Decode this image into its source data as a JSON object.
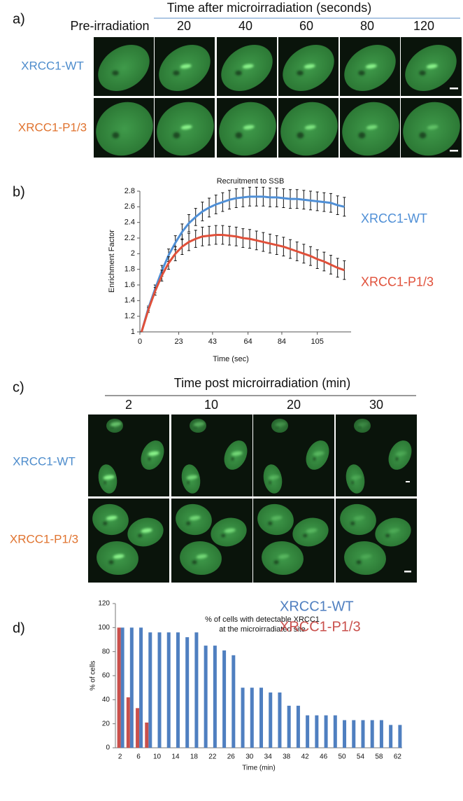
{
  "panel_a": {
    "label": "a)",
    "header": "Time after microirradiation (seconds)",
    "columns": [
      "Pre-irradiation",
      "20",
      "40",
      "60",
      "80",
      "120"
    ],
    "rows": [
      "XRCC1-WT",
      "XRCC1-P1/3"
    ]
  },
  "chart_data": [
    {
      "type": "line",
      "label": "b)",
      "title": "Recruitment to SSB",
      "xlabel": "Time (sec)",
      "ylabel": "Enrichment Factor",
      "x": [
        1,
        5,
        9,
        13,
        17,
        21,
        25,
        29,
        33,
        37,
        41,
        45,
        49,
        53,
        57,
        61,
        65,
        69,
        73,
        77,
        81,
        85,
        89,
        93,
        97,
        101,
        105,
        109,
        113,
        117,
        121
      ],
      "xlim": [
        0,
        125
      ],
      "xticks": [
        0,
        23,
        43,
        64,
        84,
        105
      ],
      "ylim": [
        1,
        2.8
      ],
      "yticks": [
        1,
        1.2,
        1.4,
        1.6,
        1.8,
        2,
        2.2,
        2.4,
        2.6,
        2.8
      ],
      "series": [
        {
          "name": "XRCC1-WT",
          "color": "#4f8fd6",
          "values": [
            1.0,
            1.3,
            1.55,
            1.78,
            1.98,
            2.14,
            2.28,
            2.39,
            2.47,
            2.54,
            2.59,
            2.63,
            2.66,
            2.69,
            2.71,
            2.72,
            2.73,
            2.73,
            2.73,
            2.72,
            2.72,
            2.71,
            2.7,
            2.7,
            2.69,
            2.68,
            2.67,
            2.66,
            2.65,
            2.62,
            2.6
          ],
          "errors": [
            0,
            0.03,
            0.05,
            0.07,
            0.08,
            0.09,
            0.1,
            0.11,
            0.11,
            0.12,
            0.12,
            0.12,
            0.12,
            0.12,
            0.12,
            0.12,
            0.12,
            0.12,
            0.12,
            0.12,
            0.12,
            0.12,
            0.12,
            0.12,
            0.12,
            0.12,
            0.12,
            0.12,
            0.12,
            0.12,
            0.12
          ]
        },
        {
          "name": "XRCC1-P1/3",
          "color": "#e0503a",
          "values": [
            1.0,
            1.28,
            1.52,
            1.72,
            1.88,
            2.0,
            2.09,
            2.15,
            2.19,
            2.22,
            2.23,
            2.24,
            2.24,
            2.23,
            2.22,
            2.2,
            2.19,
            2.17,
            2.15,
            2.13,
            2.11,
            2.09,
            2.06,
            2.03,
            2.0,
            1.97,
            1.93,
            1.9,
            1.86,
            1.82,
            1.79
          ],
          "errors": [
            0,
            0.03,
            0.05,
            0.07,
            0.08,
            0.09,
            0.1,
            0.11,
            0.11,
            0.12,
            0.12,
            0.12,
            0.12,
            0.12,
            0.12,
            0.12,
            0.12,
            0.12,
            0.12,
            0.12,
            0.12,
            0.12,
            0.12,
            0.12,
            0.12,
            0.12,
            0.12,
            0.12,
            0.12,
            0.12,
            0.12
          ]
        }
      ]
    },
    {
      "type": "bar",
      "label": "d)",
      "title": [
        "% of cells with detectable XRCC1",
        "at the microirradiated site"
      ],
      "xlabel": "Time (min)",
      "ylabel": "% of cells",
      "categories": [
        2,
        null,
        6,
        null,
        10,
        null,
        14,
        null,
        18,
        null,
        22,
        null,
        26,
        null,
        30,
        null,
        34,
        null,
        38,
        null,
        42,
        null,
        46,
        null,
        50,
        null,
        54,
        null,
        58,
        null,
        62
      ],
      "ylim": [
        0,
        120
      ],
      "yticks": [
        0,
        20,
        40,
        60,
        80,
        100,
        120
      ],
      "series": [
        {
          "name": "XRCC1-WT",
          "color": "#4f7fc0",
          "values": [
            100,
            100,
            100,
            96,
            96,
            96,
            96,
            92,
            96,
            85,
            85,
            81,
            77,
            50,
            50,
            50,
            46,
            46,
            35,
            35,
            27,
            27,
            27,
            27,
            23,
            23,
            23,
            23,
            23,
            19,
            19
          ]
        },
        {
          "name": "XRCC1-P1/3",
          "color": "#c9504c",
          "values": [
            100,
            42,
            33,
            21,
            null,
            null,
            null,
            null,
            null,
            null,
            null,
            null,
            null,
            null,
            null,
            null,
            null,
            null,
            null,
            null,
            null,
            null,
            null,
            null,
            null,
            null,
            null,
            null,
            null,
            null,
            null
          ]
        }
      ]
    }
  ],
  "panel_c": {
    "label": "c)",
    "header": "Time post microirradiation (min)",
    "columns": [
      "2",
      "10",
      "20",
      "30"
    ],
    "rows": [
      "XRCC1-WT",
      "XRCC1-P1/3"
    ]
  }
}
